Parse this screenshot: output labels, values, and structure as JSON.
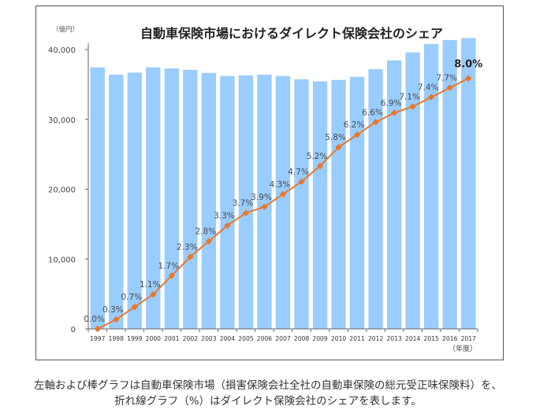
{
  "chart_data": {
    "type": "bar",
    "title": "自動車保険市場におけるダイレクト保険会社のシェア",
    "ylabel": "（億円）",
    "xlabel": "（年度）",
    "ylim": [
      0,
      40000
    ],
    "yticks": [
      0,
      10000,
      20000,
      30000,
      40000
    ],
    "ytick_labels": [
      "0",
      "10,000",
      "20,000",
      "30,000",
      "40,000"
    ],
    "grid": false,
    "categories": [
      "1997",
      "1998",
      "1999",
      "2000",
      "2001",
      "2002",
      "2003",
      "2004",
      "2005",
      "2006",
      "2007",
      "2008",
      "2009",
      "2010",
      "2011",
      "2012",
      "2013",
      "2014",
      "2015",
      "2016",
      "2017"
    ],
    "series": [
      {
        "name": "自動車保険市場（総元受正味保険料）",
        "type": "bar",
        "axis": "left",
        "color": "#99CCFF",
        "values": [
          37450,
          36400,
          36700,
          37450,
          37300,
          37100,
          36650,
          36200,
          36300,
          36400,
          36200,
          35750,
          35450,
          35650,
          36100,
          37200,
          38450,
          39600,
          40800,
          41350,
          41650
        ]
      },
      {
        "name": "ダイレクト保険会社のシェア（%）",
        "type": "line",
        "axis": "right",
        "color": "#E8772E",
        "unit": "%",
        "ylim": [
          0,
          10
        ],
        "values": [
          0.0,
          0.3,
          0.7,
          1.1,
          1.7,
          2.3,
          2.8,
          3.3,
          3.7,
          3.9,
          4.3,
          4.7,
          5.2,
          5.8,
          6.2,
          6.6,
          6.9,
          7.1,
          7.4,
          7.7,
          8.0
        ],
        "labels": [
          "0.0%",
          "0.3%",
          "0.7%",
          "1.1%",
          "1.7%",
          "2.3%",
          "2.8%",
          "3.3%",
          "3.7%",
          "3.9%",
          "4.3%",
          "4.7%",
          "5.2%",
          "5.8%",
          "6.2%",
          "6.6%",
          "6.9%",
          "7.1%",
          "7.4%",
          "7.7%",
          "8.0%"
        ],
        "highlight_last": true
      }
    ]
  },
  "caption": {
    "line1": "左軸および棒グラフは自動車保険市場（損害保険会社全社の自動車保険の総元受正味保険料）を、",
    "line2": "折れ線グラフ（%）はダイレクト保険会社のシェアを表します。"
  }
}
